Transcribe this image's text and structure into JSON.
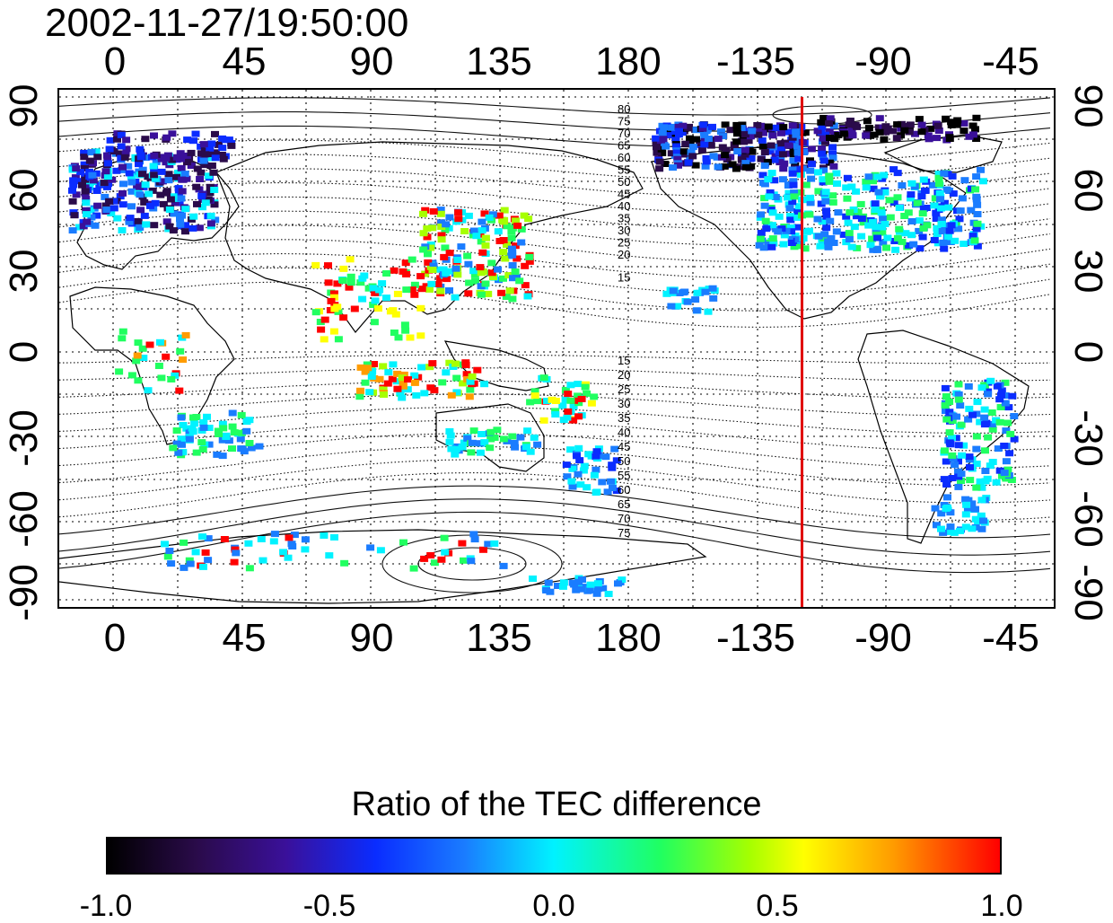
{
  "timestamp": "2002-11-27/19:50:00",
  "x_axis": {
    "top_ticks": [
      "0",
      "45",
      "90",
      "135",
      "180",
      "-135",
      "-90",
      "-45"
    ],
    "bottom_ticks": [
      "0",
      "45",
      "90",
      "135",
      "180",
      "-135",
      "-90",
      "-45"
    ]
  },
  "y_axis": {
    "left_ticks": [
      "90",
      "60",
      "30",
      "0",
      "-30",
      "-60",
      "-90"
    ],
    "right_ticks": [
      "90",
      "60",
      "30",
      "0",
      "-30",
      "-60",
      "-90"
    ]
  },
  "contour_labels": {
    "north": [
      "80",
      "75",
      "70",
      "65",
      "60",
      "55",
      "50",
      "45",
      "40",
      "35",
      "30",
      "25",
      "20",
      "15"
    ],
    "south": [
      "15",
      "20",
      "25",
      "30",
      "35",
      "40",
      "45",
      "50",
      "55",
      "60",
      "65",
      "70",
      "75"
    ]
  },
  "terminator_longitude": -122,
  "colorbar": {
    "title": "Ratio of the TEC difference",
    "ticks": [
      "-1.0",
      "-0.5",
      "0.0",
      "0.5",
      "1.0"
    ],
    "range": [
      -1.0,
      1.0
    ],
    "colors": [
      "#000000",
      "#2a0b4a",
      "#3a109a",
      "#0a2cff",
      "#1a7cff",
      "#00f2ff",
      "#20ff60",
      "#a6ff00",
      "#ffff00",
      "#ff9c00",
      "#ff0000"
    ]
  },
  "line_color": "#e00000"
}
